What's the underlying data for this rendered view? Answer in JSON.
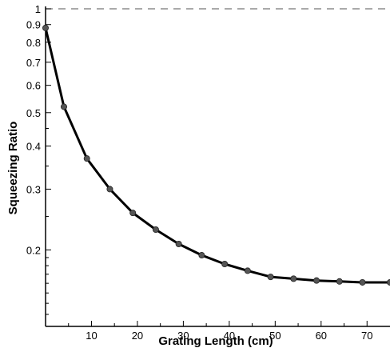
{
  "chart_data": {
    "type": "line",
    "title": "",
    "xlabel": "Grating Length (cm)",
    "ylabel": "Squeezing Ratio",
    "yscale": "log",
    "xlim": [
      0,
      75
    ],
    "ylim": [
      0.12,
      1
    ],
    "xticks": [
      10,
      20,
      30,
      40,
      50,
      60,
      70
    ],
    "yticks": [
      0.2,
      0.3,
      0.4,
      0.5,
      0.6,
      0.7,
      0.8,
      0.9,
      1
    ],
    "ytick_labels": [
      "0.2",
      "0.3",
      "0.4",
      "0.5",
      "0.6",
      "0.7",
      "0.8",
      "0.9",
      "1"
    ],
    "reference_line": {
      "y": 1,
      "style": "dashed"
    },
    "grid": false,
    "line_color": "#000000",
    "marker_color": "#555555",
    "series": [
      {
        "x": [
          0,
          4,
          9,
          14,
          19,
          24,
          29,
          34,
          39,
          44,
          49,
          54,
          59,
          64,
          69,
          75
        ],
        "y": [
          0.88,
          0.52,
          0.368,
          0.3,
          0.256,
          0.229,
          0.208,
          0.193,
          0.182,
          0.174,
          0.167,
          0.165,
          0.163,
          0.162,
          0.161,
          0.161
        ]
      }
    ]
  }
}
